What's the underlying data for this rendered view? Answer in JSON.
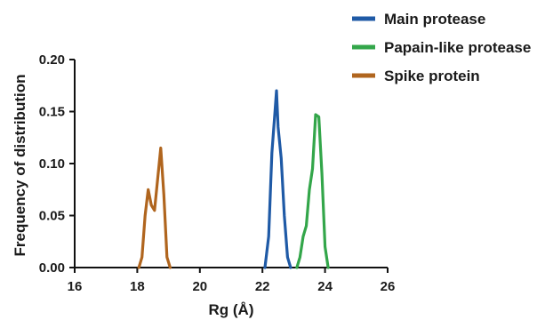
{
  "chart_data": {
    "type": "line",
    "title": "",
    "xlabel": "Rg (Å)",
    "ylabel": "Frequency of distribution",
    "xlim": [
      16,
      26
    ],
    "ylim": [
      0,
      0.2
    ],
    "x_ticks": [
      16,
      18,
      20,
      22,
      24,
      26
    ],
    "x_tick_labels": [
      "16",
      "18",
      "20",
      "22",
      "24",
      "26"
    ],
    "y_ticks": [
      0,
      0.05,
      0.1,
      0.15,
      0.2
    ],
    "y_tick_labels": [
      "0.00",
      "0.05",
      "0.10",
      "0.15",
      "0.20"
    ],
    "legend_position": "top-right",
    "grid": false,
    "series": [
      {
        "name": "Main protease",
        "color": "#1f5aa6",
        "x": [
          22.08,
          22.2,
          22.3,
          22.4,
          22.45,
          22.5,
          22.6,
          22.7,
          22.8,
          22.9
        ],
        "y": [
          0.0,
          0.03,
          0.11,
          0.15,
          0.17,
          0.135,
          0.105,
          0.05,
          0.01,
          0.0
        ]
      },
      {
        "name": "Papain-like protease",
        "color": "#33a64a",
        "x": [
          23.1,
          23.2,
          23.3,
          23.4,
          23.5,
          23.6,
          23.7,
          23.8,
          23.9,
          24.0,
          24.1
        ],
        "y": [
          0.0,
          0.01,
          0.03,
          0.04,
          0.075,
          0.095,
          0.147,
          0.145,
          0.09,
          0.02,
          0.0
        ]
      },
      {
        "name": "Spike protein",
        "color": "#b0651e",
        "x": [
          18.05,
          18.15,
          18.25,
          18.35,
          18.45,
          18.55,
          18.65,
          18.75,
          18.85,
          18.95,
          19.05
        ],
        "y": [
          0.0,
          0.01,
          0.05,
          0.075,
          0.06,
          0.055,
          0.085,
          0.115,
          0.07,
          0.01,
          0.0
        ]
      }
    ]
  }
}
